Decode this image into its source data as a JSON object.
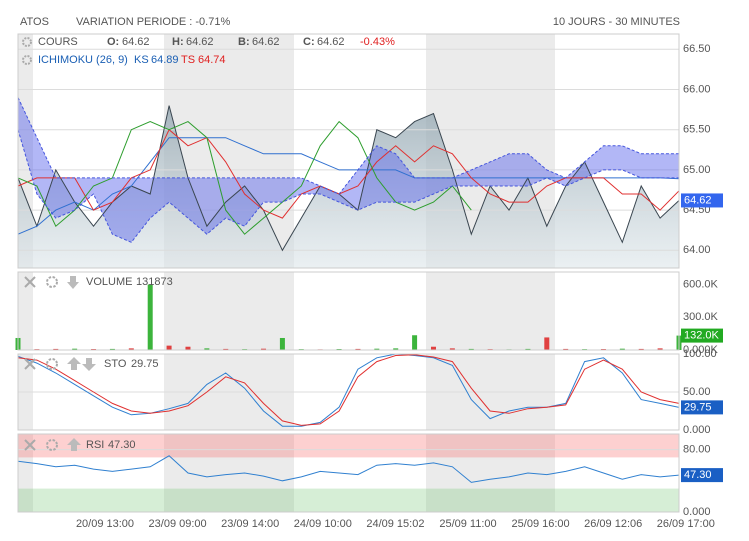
{
  "header": {
    "symbol": "ATOS",
    "variation": "VARIATION PERIODE : -0.71%",
    "period": "10 JOURS - 30 MINUTES"
  },
  "time_axis": {
    "labels": [
      "20/09 13:00",
      "23/09 09:00",
      "23/09 14:00",
      "24/09 10:00",
      "24/09 15:02",
      "25/09 11:00",
      "25/09 16:00",
      "26/09 12:06",
      "26/09 17:00"
    ]
  },
  "chart_data": [
    {
      "type": "line",
      "legend_title": "COURS",
      "indicator": "ICHIMOKU (26, 9)",
      "ohlc": [
        {
          "label": "O:",
          "value": 64.62
        },
        {
          "label": "H:",
          "value": 64.62
        },
        {
          "label": "B:",
          "value": 64.62
        },
        {
          "label": "C:",
          "value": 64.62
        }
      ],
      "change": "-0.43%",
      "ylim": [
        63.78,
        66.69
      ],
      "grid": true,
      "yticks": [
        {
          "value": 64,
          "label": "64.00"
        },
        {
          "value": 64.5,
          "label": "64.50"
        },
        {
          "value": 65,
          "label": "65.00"
        },
        {
          "value": 65.5,
          "label": "65.50"
        },
        {
          "value": 66,
          "label": "66.00"
        },
        {
          "value": 66.5,
          "label": "66.50"
        }
      ],
      "cloud": {
        "between": [
          4,
          5
        ],
        "color": "rgba(85,95,235,0.45)"
      },
      "series": [
        {
          "name": "COURS",
          "color": "#3a4650",
          "fill": "area",
          "tag": true,
          "tag_color": "#3366ee",
          "values": [
            64.9,
            64.3,
            65.0,
            64.6,
            64.3,
            64.6,
            64.8,
            64.7,
            65.8,
            64.9,
            64.3,
            64.6,
            64.8,
            64.5,
            64.0,
            64.4,
            64.8,
            64.7,
            64.5,
            65.5,
            65.4,
            65.6,
            65.7,
            65.0,
            64.2,
            64.8,
            64.5,
            64.9,
            64.3,
            64.8,
            65.1,
            64.6,
            64.1,
            64.8,
            64.4,
            64.62
          ]
        },
        {
          "name": "KS",
          "color": "#3070d0",
          "values": [
            64.2,
            64.3,
            64.5,
            64.6,
            64.5,
            64.7,
            64.8,
            65.1,
            65.4,
            65.4,
            65.4,
            65.4,
            65.3,
            65.2,
            65.2,
            65.2,
            65.1,
            65.0,
            65.0,
            65.0,
            65.0,
            64.9,
            64.9,
            64.9,
            64.9,
            64.9,
            64.9,
            64.9,
            64.9,
            64.9,
            64.9,
            64.9,
            64.9,
            64.9,
            64.9,
            64.89
          ]
        },
        {
          "name": "TS",
          "color": "#e03030",
          "values": [
            64.8,
            64.9,
            64.9,
            64.9,
            64.5,
            64.6,
            64.9,
            65.0,
            65.5,
            65.3,
            65.4,
            65.1,
            64.7,
            64.5,
            64.4,
            64.7,
            64.8,
            64.7,
            64.8,
            65.1,
            65.3,
            65.1,
            65.3,
            65.2,
            64.9,
            64.7,
            64.6,
            64.6,
            64.8,
            64.9,
            64.9,
            64.9,
            64.7,
            64.7,
            64.5,
            64.74
          ]
        },
        {
          "color": "#2e9e2e",
          "values": [
            64.9,
            64.8,
            64.3,
            64.5,
            64.8,
            64.9,
            65.5,
            65.6,
            65.5,
            65.6,
            65.4,
            64.5,
            64.2,
            64.4,
            64.6,
            64.8,
            65.3,
            65.6,
            65.4,
            64.9,
            64.6,
            64.5,
            64.6,
            64.8,
            64.5,
            null,
            null,
            null,
            null,
            null,
            null,
            null,
            null,
            null,
            null,
            null
          ]
        },
        {
          "color": "#4455dd",
          "values": [
            65.9,
            65.4,
            64.9,
            64.9,
            64.9,
            64.9,
            64.9,
            64.9,
            64.9,
            64.9,
            64.9,
            64.9,
            64.9,
            64.9,
            64.9,
            64.9,
            64.8,
            64.7,
            65.0,
            65.3,
            65.2,
            64.9,
            64.9,
            64.9,
            65.0,
            65.1,
            65.2,
            65.2,
            65.0,
            64.9,
            65.1,
            65.3,
            65.3,
            65.2,
            65.2,
            65.2
          ]
        },
        {
          "color": "#4455dd",
          "values": [
            65.5,
            64.7,
            64.4,
            64.5,
            64.7,
            64.2,
            64.1,
            64.4,
            64.6,
            64.4,
            64.2,
            64.4,
            64.3,
            64.6,
            64.6,
            64.7,
            64.7,
            64.6,
            64.5,
            64.6,
            64.6,
            64.6,
            64.7,
            64.8,
            64.8,
            64.8,
            64.8,
            64.8,
            64.9,
            64.8,
            64.9,
            65.0,
            65.0,
            64.9,
            64.9,
            64.9
          ]
        }
      ]
    },
    {
      "type": "bar",
      "legend_title": "VOLUME",
      "ylim": [
        0,
        714000
      ],
      "grid": false,
      "yticks": [
        {
          "value": 0,
          "label": "0.000K"
        },
        {
          "value": 300000,
          "label": "300.0K"
        },
        {
          "value": 600000,
          "label": "600.0K"
        }
      ],
      "series": [
        {
          "tag": true,
          "tag_color": "#22aa22",
          "values": [
            110000,
            8000,
            10000,
            12000,
            9000,
            10000,
            15000,
            600000,
            40000,
            30000,
            15000,
            10000,
            8000,
            12000,
            110000,
            8000,
            6000,
            9000,
            10000,
            12000,
            15000,
            135000,
            30000,
            15000,
            10000,
            8000,
            6000,
            10000,
            115000,
            10000,
            8000,
            9000,
            12000,
            10000,
            15000,
            131873
          ],
          "value_labels": [
            null,
            null,
            null,
            null,
            null,
            null,
            null,
            null,
            null,
            null,
            null,
            null,
            null,
            null,
            null,
            null,
            null,
            null,
            null,
            null,
            null,
            null,
            null,
            null,
            null,
            null,
            null,
            null,
            null,
            null,
            null,
            null,
            null,
            null,
            null,
            "132.0K"
          ],
          "colors": [
            "#3cb43c",
            "#e04040",
            "#e04040",
            "#3cb43c",
            "#e04040",
            "#3cb43c",
            "#e04040",
            "#3cb43c",
            "#e04040",
            "#e04040",
            "#3cb43c",
            "#e04040",
            "#3cb43c",
            "#e04040",
            "#3cb43c",
            "#3cb43c",
            "#e04040",
            "#3cb43c",
            "#e04040",
            "#3cb43c",
            "#3cb43c",
            "#3cb43c",
            "#e04040",
            "#e04040",
            "#3cb43c",
            "#e04040",
            "#3cb43c",
            "#3cb43c",
            "#e04040",
            "#e04040",
            "#3cb43c",
            "#e04040",
            "#3cb43c",
            "#e04040",
            "#e04040",
            "#3cb43c"
          ]
        }
      ]
    },
    {
      "type": "line",
      "legend_title": "STO",
      "ylim": [
        0,
        100
      ],
      "grid": true,
      "yticks": [
        {
          "value": 0,
          "label": "0.000"
        },
        {
          "value": 50,
          "label": "50.00"
        },
        {
          "value": 100,
          "label": "100.00"
        }
      ],
      "series": [
        {
          "color": "#3080d0",
          "tag": true,
          "tag_color": "#1a5fc4",
          "values": [
            97,
            88,
            75,
            60,
            45,
            30,
            20,
            22,
            28,
            35,
            60,
            75,
            55,
            25,
            5,
            5,
            10,
            30,
            80,
            95,
            100,
            98,
            95,
            85,
            40,
            15,
            25,
            30,
            30,
            35,
            90,
            95,
            75,
            40,
            35,
            29.75
          ]
        },
        {
          "color": "#e03030",
          "values": [
            95,
            92,
            80,
            65,
            50,
            35,
            25,
            22,
            25,
            32,
            50,
            70,
            62,
            35,
            12,
            6,
            8,
            25,
            70,
            90,
            98,
            99,
            96,
            90,
            55,
            25,
            22,
            28,
            30,
            33,
            80,
            92,
            80,
            50,
            40,
            35
          ]
        }
      ]
    },
    {
      "type": "line",
      "legend_title": "RSI",
      "ylim": [
        0,
        100
      ],
      "grid": true,
      "yticks": [
        {
          "value": 0,
          "label": "0.000"
        },
        {
          "value": 80,
          "label": "80.00"
        }
      ],
      "bands": [
        {
          "from": 70,
          "to": 100,
          "color": "rgba(250,120,120,0.35)"
        },
        {
          "from": 0,
          "to": 30,
          "color": "rgba(120,200,120,0.3)"
        }
      ],
      "series": [
        {
          "color": "#3080d0",
          "tag": true,
          "tag_color": "#1a5fc4",
          "values": [
            65,
            62,
            58,
            60,
            55,
            52,
            55,
            58,
            72,
            50,
            45,
            48,
            50,
            46,
            40,
            45,
            52,
            50,
            48,
            60,
            62,
            60,
            63,
            58,
            38,
            42,
            45,
            50,
            48,
            52,
            58,
            50,
            42,
            48,
            45,
            47.3
          ],
          "value_labels": [
            null,
            null,
            null,
            null,
            null,
            null,
            null,
            null,
            null,
            null,
            null,
            null,
            null,
            null,
            null,
            null,
            null,
            null,
            null,
            null,
            null,
            null,
            null,
            null,
            null,
            null,
            null,
            null,
            null,
            null,
            null,
            null,
            null,
            null,
            null,
            "47.30"
          ]
        }
      ]
    }
  ]
}
